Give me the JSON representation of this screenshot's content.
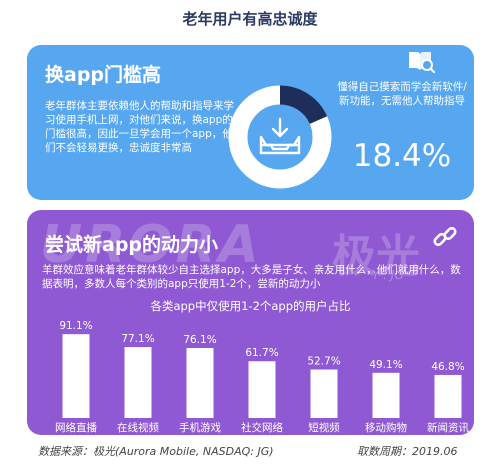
{
  "page_title": "老年用户有高忠诚度",
  "card1": {
    "heading": "换app门槛高",
    "body": "老年群体主要依赖他人的帮助和指导来学习使用手机上网，对他们来说，换app的门槛很高，因此一旦学会用一个app，他们不会轻易更换，忠诚度非常高",
    "stat_desc": "懂得自己摸索而学会新软件/新功能，无需他人帮助指导",
    "stat_value": "18.4%",
    "stat_fraction": 0.184,
    "icons": [
      "book-search-icon",
      "inbox-tray-icon"
    ]
  },
  "card2": {
    "heading": "尝试新app的动力小",
    "body": "羊群效应意味着老年群体较少自主选择app，大多是子女、亲友用什么，他们就用什么，数据表明，多数人每个类别的app只使用1-2个，尝新的动力小",
    "icons": [
      "link-icon"
    ]
  },
  "watermark": {
    "brand": "URORA",
    "cn": "极光",
    "sub": "Y . JG"
  },
  "chart_data": {
    "type": "bar",
    "title": "各类app中仅使用1-2个app的用户占比",
    "categories": [
      "网络直播",
      "在线视频",
      "手机游戏",
      "社交网络",
      "短视频",
      "移动购物",
      "新闻资讯"
    ],
    "values": [
      91.1,
      77.1,
      76.1,
      61.7,
      52.7,
      49.1,
      46.8
    ],
    "labels": [
      "91.1%",
      "77.1%",
      "76.1%",
      "61.7%",
      "52.7%",
      "49.1%",
      "46.8%"
    ],
    "ylim": [
      0,
      100
    ],
    "bar_color": "#ffffff",
    "label_color": "#ffffff",
    "grid": false
  },
  "footer": {
    "source": "数据来源：极光(Aurora Mobile, NASDAQ: JG)",
    "period": "取数周期：2019.06"
  },
  "colors": {
    "card1": "#56a6f0",
    "card2": "#8f59d3",
    "title": "#2b3a63",
    "donut_dark": "#1f2d5a"
  }
}
